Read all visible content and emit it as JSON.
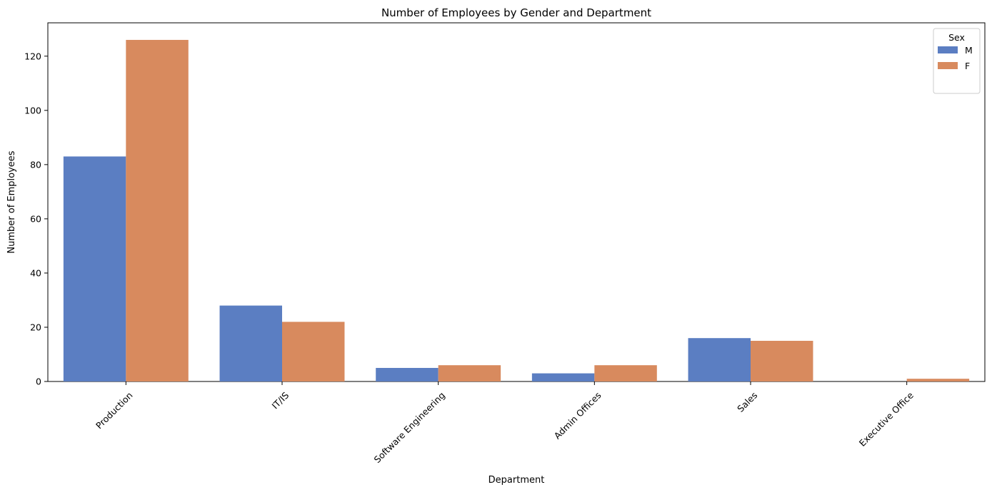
{
  "chart_data": {
    "type": "bar",
    "title": "Number of Employees by Gender and Department",
    "xlabel": "Department",
    "ylabel": "Number of Employees",
    "categories": [
      "Production",
      "IT/IS",
      "Software Engineering",
      "Admin Offices",
      "Sales",
      "Executive Office"
    ],
    "series": [
      {
        "name": "M",
        "color": "#5b7ec2",
        "values": [
          83,
          28,
          5,
          3,
          16,
          0
        ]
      },
      {
        "name": "F",
        "color": "#d88a5e",
        "values": [
          126,
          22,
          6,
          6,
          15,
          1
        ]
      }
    ],
    "ylim": [
      0,
      132.3
    ],
    "yticks": [
      0,
      20,
      40,
      60,
      80,
      100,
      120
    ],
    "legend": {
      "title": "Sex",
      "position": "top-right"
    },
    "grid": false
  }
}
